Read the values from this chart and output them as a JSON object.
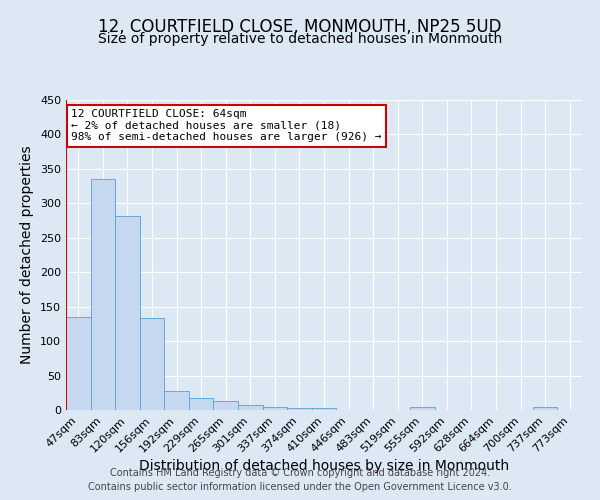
{
  "title": "12, COURTFIELD CLOSE, MONMOUTH, NP25 5UD",
  "subtitle": "Size of property relative to detached houses in Monmouth",
  "xlabel": "Distribution of detached houses by size in Monmouth",
  "ylabel": "Number of detached properties",
  "categories": [
    "47sqm",
    "83sqm",
    "120sqm",
    "156sqm",
    "192sqm",
    "229sqm",
    "265sqm",
    "301sqm",
    "337sqm",
    "374sqm",
    "410sqm",
    "446sqm",
    "483sqm",
    "519sqm",
    "555sqm",
    "592sqm",
    "628sqm",
    "664sqm",
    "700sqm",
    "737sqm",
    "773sqm"
  ],
  "values": [
    135,
    335,
    281,
    133,
    28,
    17,
    13,
    7,
    5,
    3,
    3,
    0,
    0,
    0,
    4,
    0,
    0,
    0,
    0,
    4,
    0
  ],
  "bar_color": "#c5d8f0",
  "bar_edge_color": "#5a9fd4",
  "annotation_title": "12 COURTFIELD CLOSE: 64sqm",
  "annotation_line1": "← 2% of detached houses are smaller (18)",
  "annotation_line2": "98% of semi-detached houses are larger (926) →",
  "annotation_box_color": "white",
  "annotation_border_color": "#cc0000",
  "red_line_color": "#cc0000",
  "ylim": [
    0,
    450
  ],
  "yticks": [
    0,
    50,
    100,
    150,
    200,
    250,
    300,
    350,
    400,
    450
  ],
  "background_color": "#dde8f5",
  "grid_color": "white",
  "title_fontsize": 12,
  "subtitle_fontsize": 10,
  "axis_label_fontsize": 10,
  "tick_fontsize": 8,
  "annotation_fontsize": 8,
  "footer_fontsize": 7,
  "footer_line1": "Contains HM Land Registry data © Crown copyright and database right 2024.",
  "footer_line2": "Contains public sector information licensed under the Open Government Licence v3.0."
}
